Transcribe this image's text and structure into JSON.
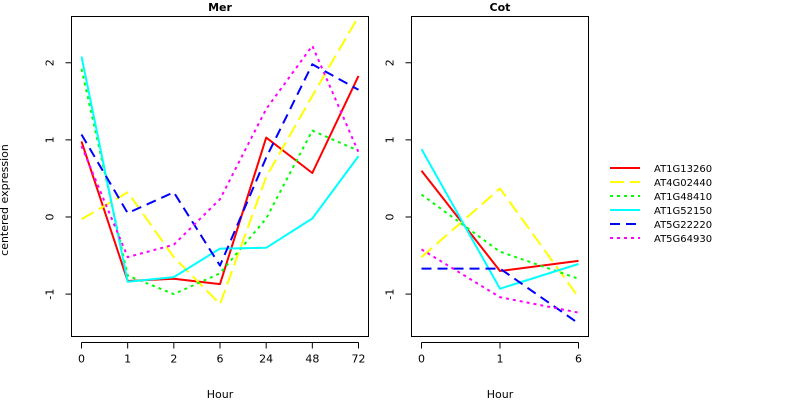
{
  "chart_data": {
    "type": "line",
    "ylabel": "centered expression",
    "ylim": [
      -1.55,
      2.6
    ],
    "yticks": [
      "-1",
      "0",
      "1",
      "2"
    ],
    "yticks_values": [
      -1,
      0,
      1,
      2
    ],
    "legend_position": "right",
    "panels": [
      {
        "title": "Mer",
        "xlabel": "Hour",
        "categories": [
          "0",
          "1",
          "2",
          "6",
          "24",
          "48",
          "72"
        ],
        "series": [
          {
            "name": "AT1G13260",
            "color": "#ff0000",
            "dash": "solid",
            "values": [
              0.98,
              -0.83,
              -0.8,
              -0.87,
              1.03,
              0.57,
              1.83
            ]
          },
          {
            "name": "AT4G02440",
            "color": "#ffff00",
            "dash": "longdash",
            "values": [
              -0.03,
              0.32,
              -0.52,
              -1.13,
              0.52,
              1.57,
              2.6
            ]
          },
          {
            "name": "AT1G48410",
            "color": "#00ff00",
            "dash": "dot",
            "values": [
              1.92,
              -0.76,
              -1.0,
              -0.73,
              -0.02,
              1.12,
              0.86
            ]
          },
          {
            "name": "AT1G52150",
            "color": "#00ffff",
            "dash": "solid",
            "values": [
              2.08,
              -0.84,
              -0.78,
              -0.41,
              -0.4,
              -0.02,
              0.79
            ]
          },
          {
            "name": "AT5G22220",
            "color": "#0000ff",
            "dash": "dash",
            "values": [
              1.07,
              0.05,
              0.32,
              -0.63,
              0.77,
              1.98,
              1.65
            ]
          },
          {
            "name": "AT5G64930",
            "color": "#ff00ff",
            "dash": "dot",
            "values": [
              0.92,
              -0.52,
              -0.36,
              0.23,
              1.4,
              2.22,
              0.84
            ]
          }
        ]
      },
      {
        "title": "Cot",
        "xlabel": "Hour",
        "categories": [
          "0",
          "1",
          "6"
        ],
        "series": [
          {
            "name": "AT1G13260",
            "color": "#ff0000",
            "dash": "solid",
            "values": [
              0.6,
              -0.7,
              -0.57
            ]
          },
          {
            "name": "AT4G02440",
            "color": "#ffff00",
            "dash": "longdash",
            "values": [
              -0.52,
              0.37,
              -1.04
            ]
          },
          {
            "name": "AT1G48410",
            "color": "#00ff00",
            "dash": "dot",
            "values": [
              0.29,
              -0.45,
              -0.8
            ]
          },
          {
            "name": "AT1G52150",
            "color": "#00ffff",
            "dash": "solid",
            "values": [
              0.88,
              -0.93,
              -0.61
            ]
          },
          {
            "name": "AT5G22220",
            "color": "#0000ff",
            "dash": "dash",
            "values": [
              -0.67,
              -0.67,
              -1.38
            ]
          },
          {
            "name": "AT5G64930",
            "color": "#ff00ff",
            "dash": "dot",
            "values": [
              -0.42,
              -1.04,
              -1.24
            ]
          }
        ]
      }
    ]
  }
}
